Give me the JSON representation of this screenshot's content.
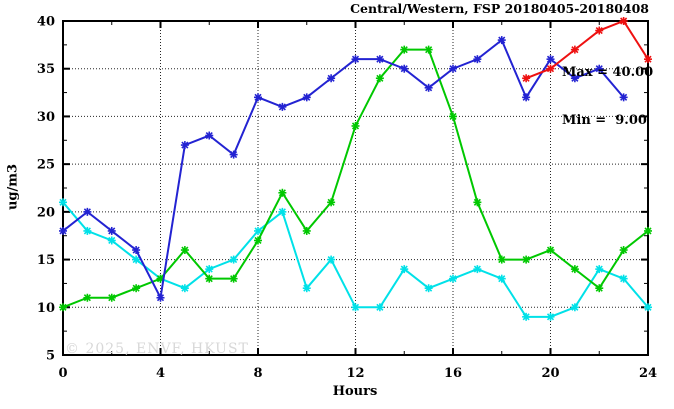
{
  "title": "Central/Western, FSP 20180405-20180408",
  "annotations": {
    "max": "Max = 40.00",
    "min": "Min =  9.00"
  },
  "watermark": "© 2025, ENVF, HKUST",
  "chart_data": {
    "type": "line",
    "title": "Central/Western, FSP 20180405-20180408",
    "xlabel": "Hours",
    "ylabel": "ug/m3",
    "xlim": [
      0,
      24
    ],
    "ylim": [
      5,
      40
    ],
    "x_major_ticks": [
      0,
      4,
      8,
      12,
      16,
      20,
      24
    ],
    "x_minor_ticks": [
      2,
      6,
      10,
      14,
      18,
      22
    ],
    "y_major_ticks": [
      5,
      10,
      15,
      20,
      25,
      30,
      35,
      40
    ],
    "y_minor_ticks": [
      7.5,
      12.5,
      17.5,
      22.5,
      27.5,
      32.5,
      37.5
    ],
    "x_gridlines": [
      4,
      8,
      12,
      16,
      20
    ],
    "y_gridlines": [
      10,
      15,
      20,
      25,
      30,
      35
    ],
    "grid": true,
    "legend": "none",
    "max_value": 40.0,
    "min_value": 9.0,
    "marker": "asterisk",
    "series": [
      {
        "name": "cyan-series",
        "color": "#00e1e8",
        "start_hour": 0,
        "values": [
          21,
          18,
          17,
          15,
          13,
          12,
          14,
          15,
          18,
          20,
          12,
          15,
          10,
          10,
          14,
          12,
          13,
          14,
          13,
          9,
          9,
          10,
          14,
          13,
          10
        ]
      },
      {
        "name": "green-series",
        "color": "#00c800",
        "start_hour": 0,
        "values": [
          10,
          11,
          11,
          12,
          13,
          16,
          13,
          13,
          17,
          22,
          18,
          21,
          29,
          34,
          37,
          37,
          30,
          21,
          15,
          15,
          16,
          14,
          12,
          16,
          18
        ]
      },
      {
        "name": "blue-series",
        "color": "#2323d2",
        "start_hour": 0,
        "values": [
          18,
          20,
          18,
          16,
          11,
          27,
          28,
          26,
          32,
          31,
          32,
          34,
          36,
          36,
          35,
          33,
          35,
          36,
          38,
          32,
          36,
          34,
          35,
          32
        ]
      },
      {
        "name": "red-series",
        "color": "#ee1111",
        "start_hour": 19,
        "values": [
          34,
          35,
          37,
          39,
          40,
          36
        ]
      }
    ]
  }
}
